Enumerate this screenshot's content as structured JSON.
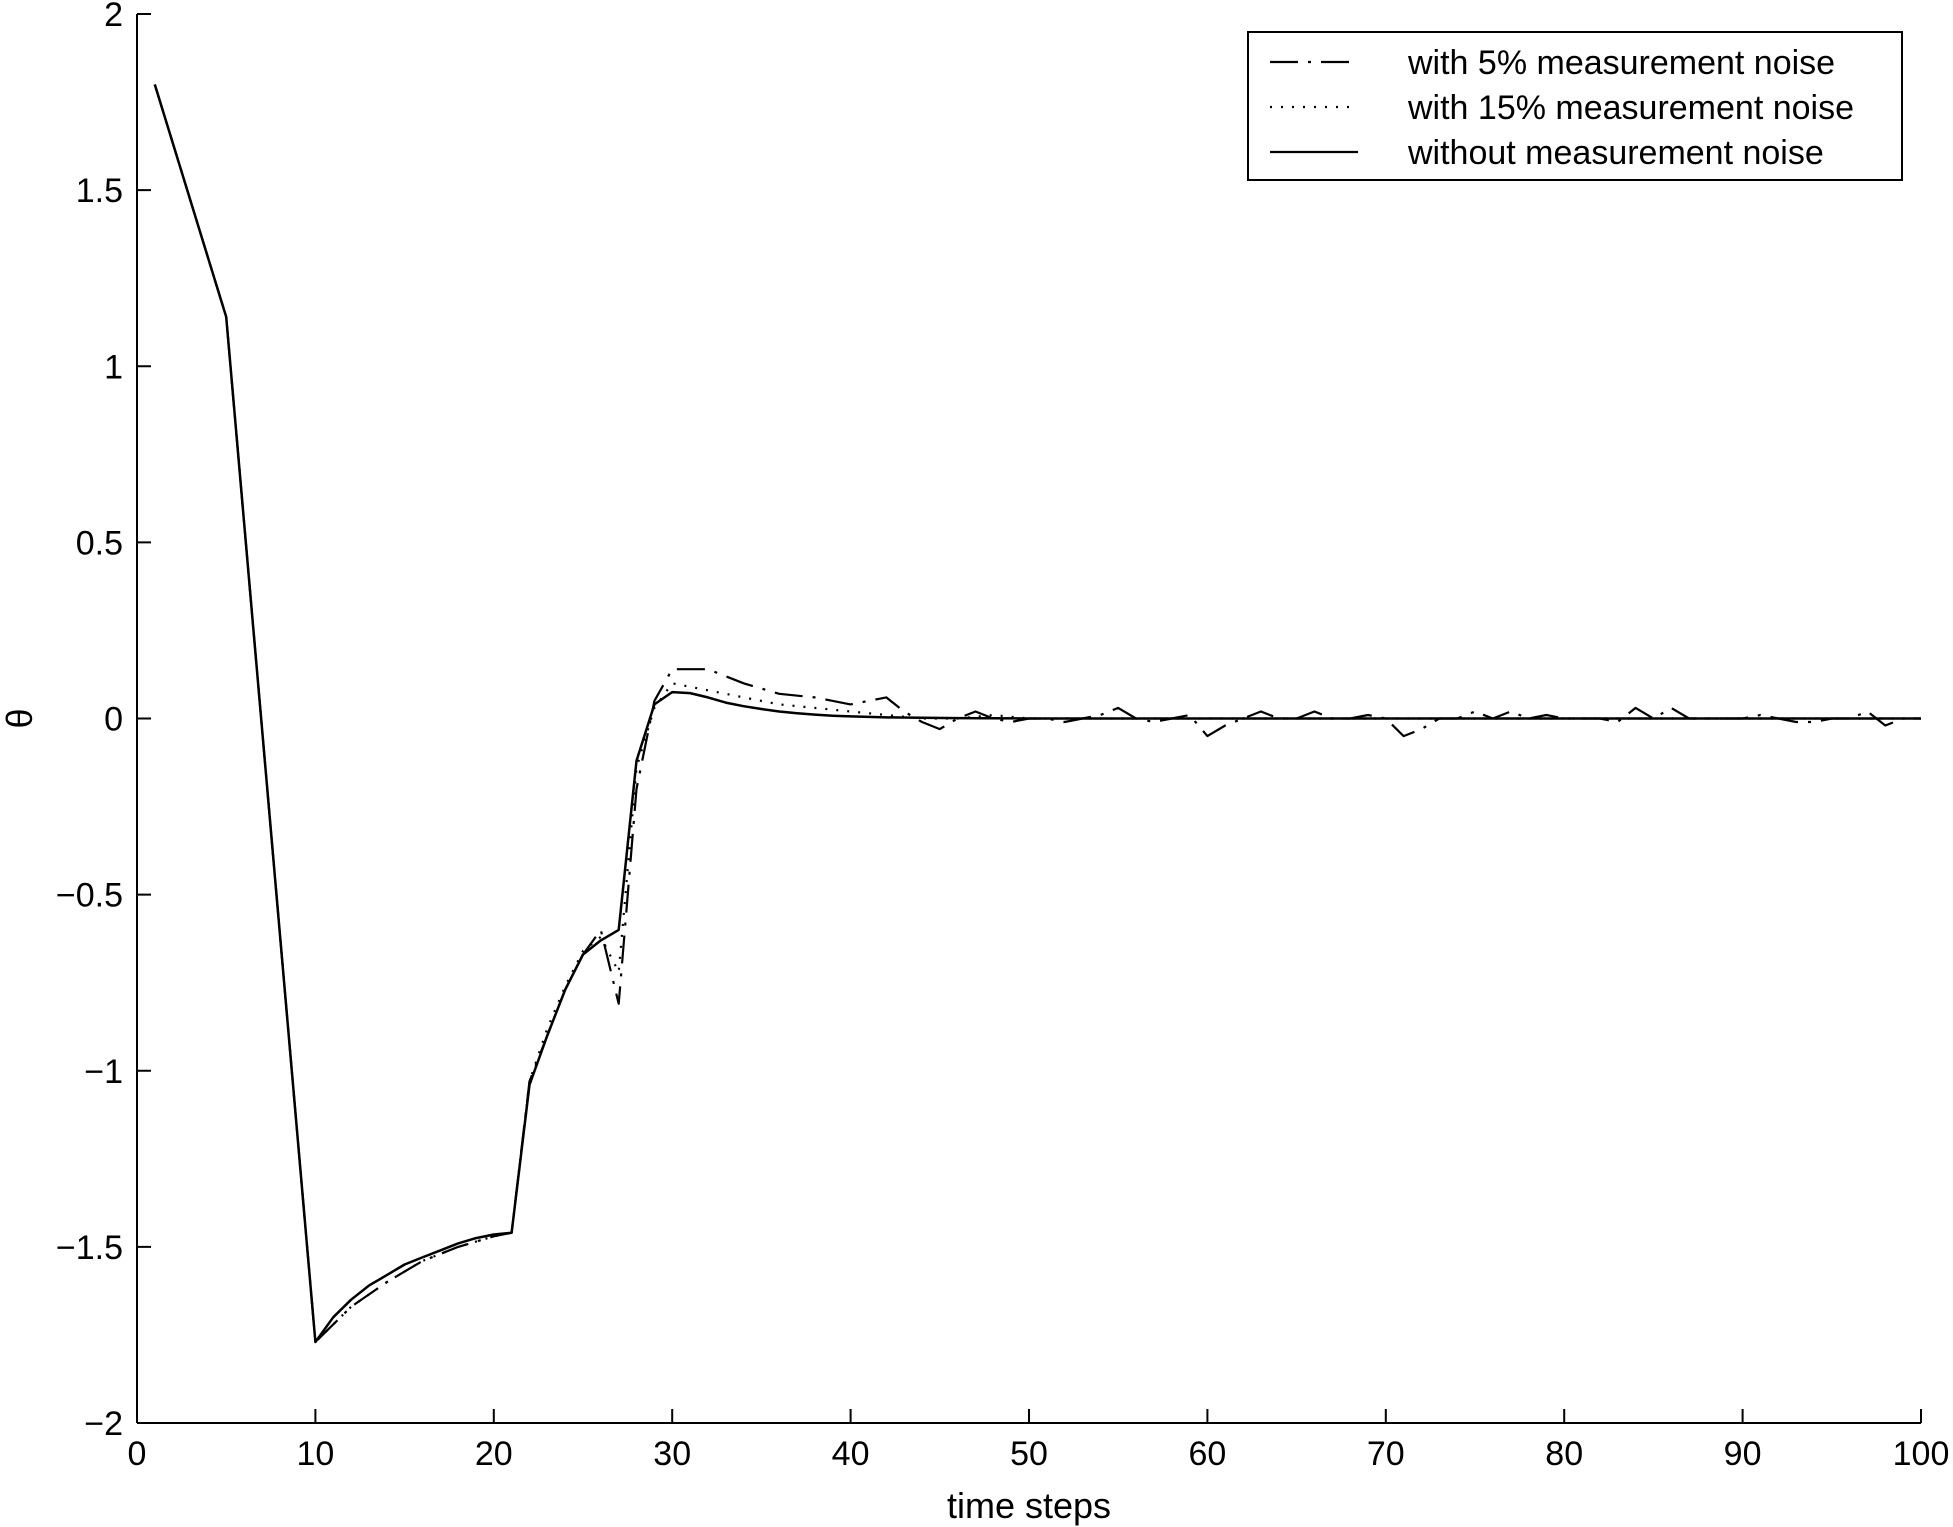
{
  "chart_data": {
    "type": "line",
    "title": "",
    "xlabel": "time steps",
    "ylabel": "θ",
    "xlim": [
      0,
      100
    ],
    "ylim": [
      -2,
      2
    ],
    "xticks": [
      0,
      10,
      20,
      30,
      40,
      50,
      60,
      70,
      80,
      90,
      100
    ],
    "xtick_labels": [
      "0",
      "10",
      "20",
      "30",
      "40",
      "50",
      "60",
      "70",
      "80",
      "90",
      "100"
    ],
    "yticks": [
      -2,
      -1.5,
      -1,
      -0.5,
      0,
      0.5,
      1,
      1.5,
      2
    ],
    "ytick_labels": [
      "−2",
      "−1.5",
      "−1",
      "−0.5",
      "0",
      "0.5",
      "1",
      "1.5",
      "2"
    ],
    "grid": false,
    "legend_position": "top-right",
    "series": [
      {
        "name": "with 5% measurement noise",
        "style": "dashdot",
        "color": "#000000",
        "x": [
          1,
          5,
          10,
          12,
          14,
          16,
          18,
          20,
          21,
          22,
          23,
          24,
          25,
          26,
          27,
          28,
          29,
          30,
          32,
          34,
          36,
          38,
          40,
          42,
          43,
          44,
          45,
          46,
          47,
          48,
          49,
          50,
          51,
          52,
          53,
          54,
          55,
          56,
          57,
          58,
          59,
          60,
          61,
          62,
          63,
          64,
          65,
          66,
          67,
          68,
          69,
          70,
          71,
          72,
          73,
          74,
          75,
          76,
          77,
          78,
          79,
          80,
          81,
          82,
          83,
          84,
          85,
          86,
          87,
          88,
          89,
          90,
          91,
          92,
          93,
          94,
          95,
          96,
          97,
          98,
          99,
          100
        ],
        "y": [
          1.8,
          1.14,
          -1.77,
          -1.67,
          -1.6,
          -1.54,
          -1.5,
          -1.47,
          -1.46,
          -1.03,
          -0.9,
          -0.77,
          -0.67,
          -0.6,
          -0.81,
          -0.2,
          0.05,
          0.14,
          0.14,
          0.1,
          0.07,
          0.06,
          0.04,
          0.06,
          0.02,
          -0.01,
          -0.03,
          0.0,
          0.02,
          0.0,
          -0.01,
          0.0,
          0.0,
          -0.01,
          0.0,
          0.01,
          0.03,
          0.0,
          -0.01,
          0.0,
          0.01,
          -0.05,
          -0.02,
          0.0,
          0.02,
          0.0,
          0.0,
          0.02,
          0.0,
          0.0,
          0.01,
          0.0,
          -0.05,
          -0.03,
          0.0,
          0.0,
          0.02,
          0.0,
          0.02,
          0.0,
          0.01,
          0.0,
          0.0,
          0.0,
          -0.01,
          0.03,
          0.0,
          0.03,
          0.0,
          0.0,
          0.0,
          0.0,
          0.01,
          0.0,
          -0.01,
          -0.01,
          0.0,
          0.0,
          0.02,
          -0.02,
          0.0,
          0.0
        ]
      },
      {
        "name": "with 15% measurement noise",
        "style": "dotted",
        "color": "#000000",
        "x": [
          1,
          5,
          10,
          12,
          14,
          16,
          18,
          20,
          21,
          22,
          23,
          24,
          25,
          26,
          27,
          28,
          29,
          30,
          32,
          34,
          36,
          38,
          40,
          42,
          44,
          46,
          48,
          50,
          55,
          60,
          65,
          70,
          75,
          80,
          85,
          90,
          95,
          100
        ],
        "y": [
          1.8,
          1.14,
          -1.77,
          -1.67,
          -1.6,
          -1.54,
          -1.5,
          -1.47,
          -1.46,
          -1.03,
          -0.88,
          -0.76,
          -0.66,
          -0.62,
          -0.72,
          -0.14,
          0.03,
          0.1,
          0.08,
          0.06,
          0.04,
          0.03,
          0.02,
          0.01,
          0.0,
          0.0,
          0.01,
          0.0,
          0.0,
          0.0,
          0.0,
          0.0,
          0.0,
          0.0,
          0.0,
          0.0,
          0.0,
          0.0
        ]
      },
      {
        "name": "without measurement noise",
        "style": "solid",
        "color": "#000000",
        "x": [
          1,
          5,
          10,
          11,
          12,
          13,
          14,
          15,
          16,
          17,
          18,
          19,
          20,
          21,
          22,
          23,
          24,
          25,
          26,
          27,
          28,
          29,
          30,
          31,
          32,
          33,
          34,
          35,
          36,
          37,
          38,
          39,
          40,
          42,
          44,
          46,
          50,
          60,
          70,
          80,
          90,
          100
        ],
        "y": [
          1.8,
          1.14,
          -1.77,
          -1.7,
          -1.65,
          -1.61,
          -1.58,
          -1.55,
          -1.53,
          -1.51,
          -1.49,
          -1.475,
          -1.465,
          -1.46,
          -1.04,
          -0.9,
          -0.77,
          -0.67,
          -0.63,
          -0.6,
          -0.12,
          0.04,
          0.075,
          0.072,
          0.06,
          0.045,
          0.035,
          0.027,
          0.02,
          0.015,
          0.011,
          0.008,
          0.006,
          0.003,
          0.002,
          0.001,
          0.0,
          0.0,
          0.0,
          0.0,
          0.0,
          0.0
        ]
      }
    ]
  }
}
